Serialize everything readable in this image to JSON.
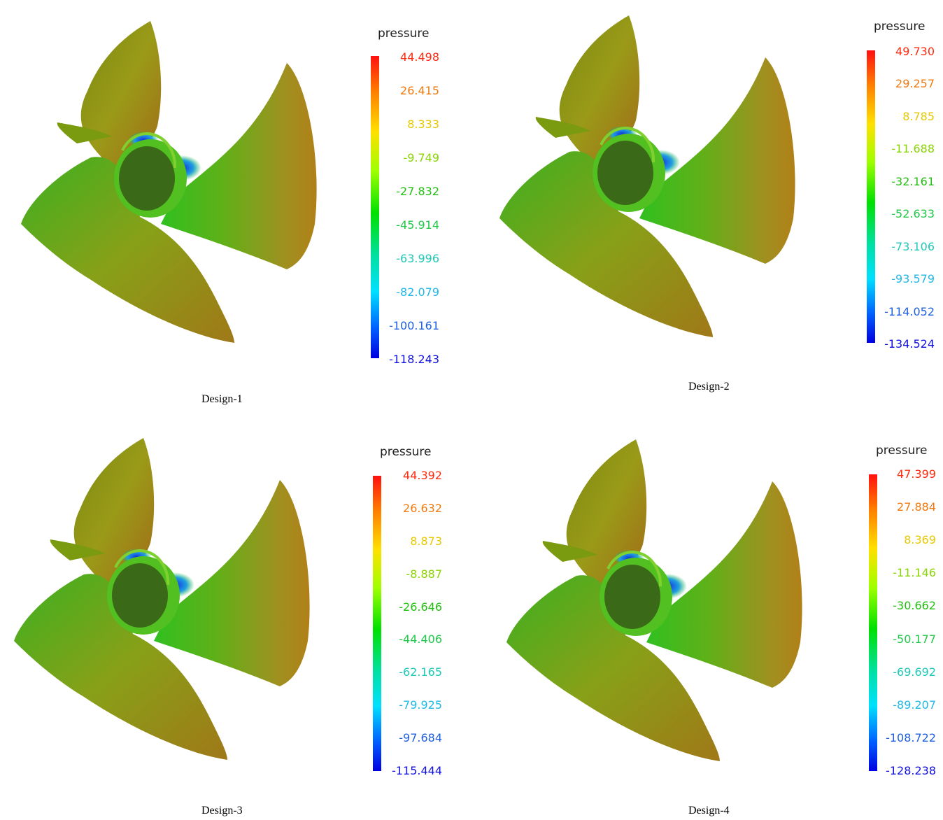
{
  "designs": [
    {
      "caption": "Design-1",
      "legend_title": "pressure",
      "ticks": [
        "44.498",
        "26.415",
        "8.333",
        "-9.749",
        "-27.832",
        "-45.914",
        "-63.996",
        "-82.079",
        "-100.161",
        "-118.243"
      ],
      "serrations": "none"
    },
    {
      "caption": "Design-2",
      "legend_title": "pressure",
      "ticks": [
        "49.730",
        "29.257",
        "8.785",
        "-11.688",
        "-32.161",
        "-52.633",
        "-73.106",
        "-93.579",
        "-114.052",
        "-134.524"
      ],
      "serrations": "tips"
    },
    {
      "caption": "Design-3",
      "legend_title": "pressure",
      "ticks": [
        "44.392",
        "26.632",
        "8.873",
        "-8.887",
        "-26.646",
        "-44.406",
        "-62.165",
        "-79.925",
        "-97.684",
        "-115.444"
      ],
      "serrations": "notched"
    },
    {
      "caption": "Design-4",
      "legend_title": "pressure",
      "ticks": [
        "47.399",
        "27.884",
        "8.369",
        "-11.146",
        "-30.662",
        "-50.177",
        "-69.692",
        "-89.207",
        "-108.722",
        "-128.238"
      ],
      "serrations": "full"
    }
  ],
  "tick_colors": [
    "#ff2a10",
    "#f07a10",
    "#e8c800",
    "#8ad400",
    "#22c010",
    "#20c848",
    "#20c8b8",
    "#20b8e8",
    "#2060e0",
    "#1010e0"
  ]
}
